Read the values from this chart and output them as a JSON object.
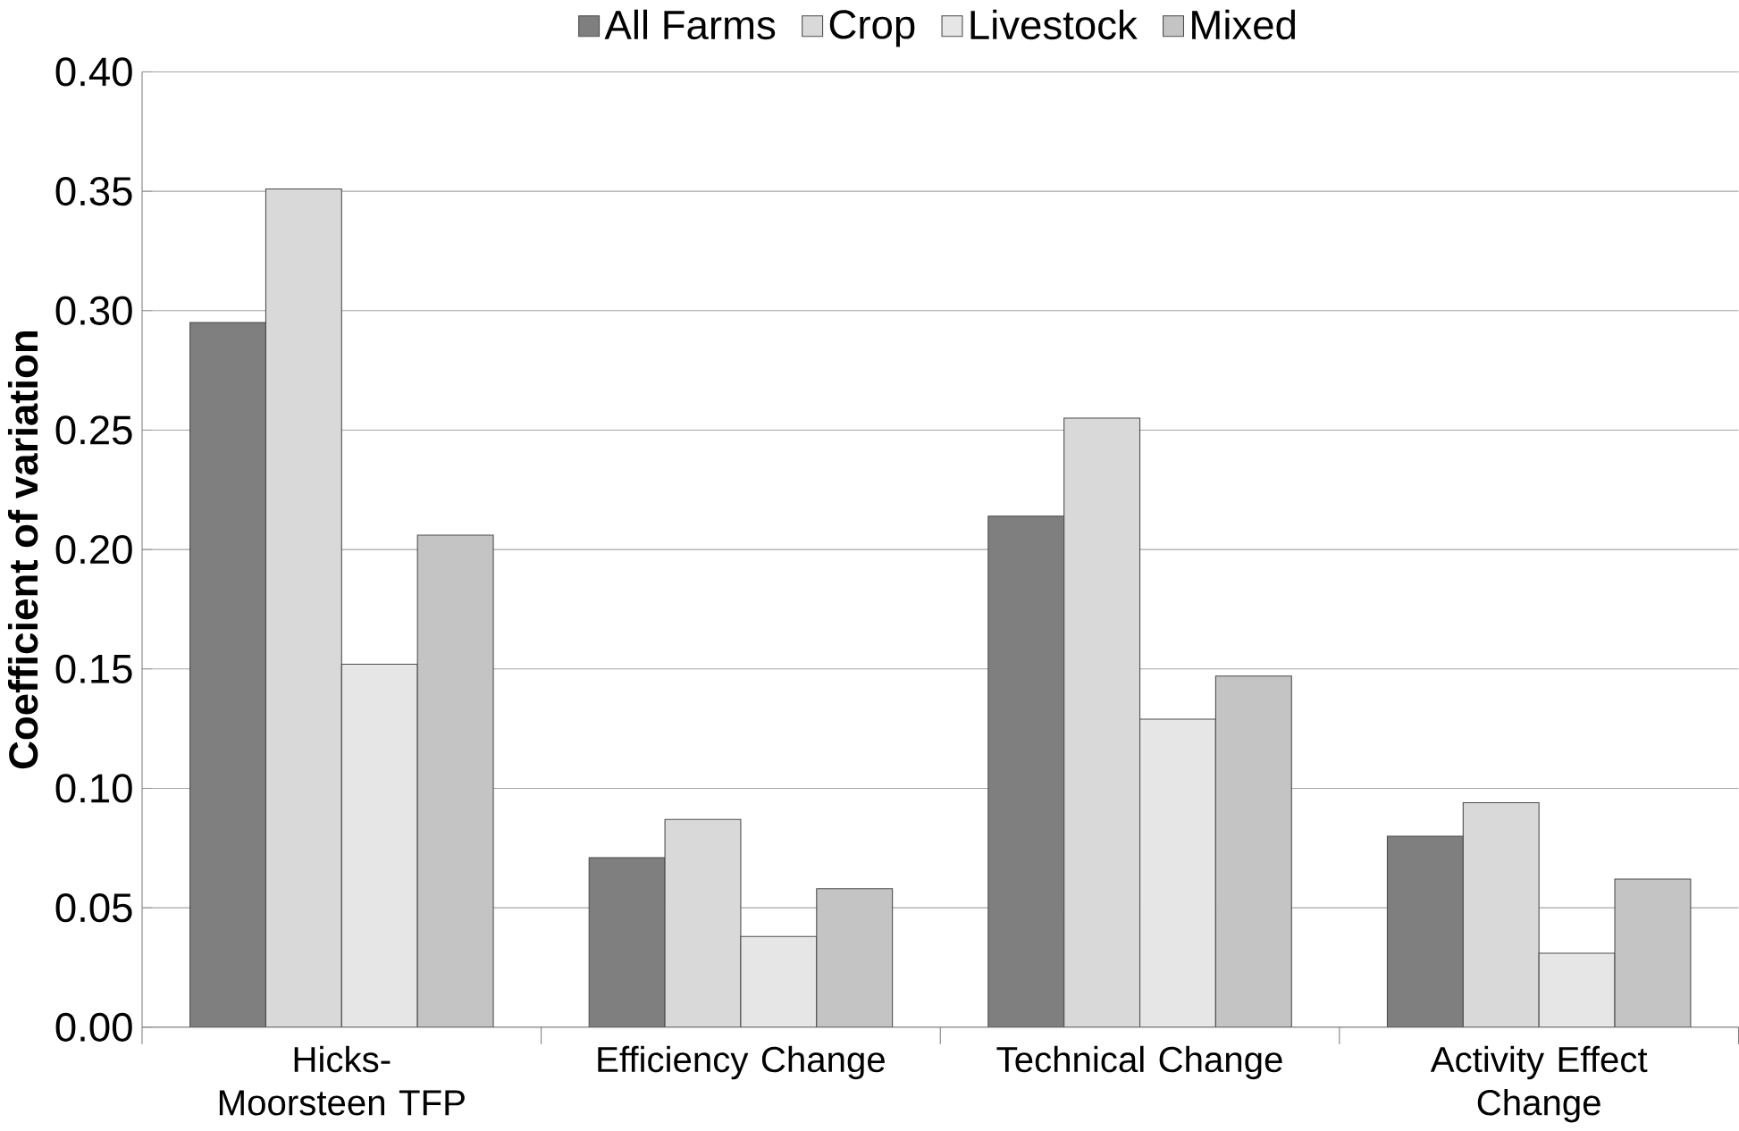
{
  "chart_data": {
    "type": "bar",
    "ylabel": "Coefficient of variation",
    "categories": [
      "Hicks-Moorsteen TFP",
      "Efficiency Change",
      "Technical Change",
      "Activity Effect Change"
    ],
    "series": [
      {
        "name": "All Farms",
        "color": "#7f7f7f",
        "values": [
          0.295,
          0.071,
          0.214,
          0.08
        ]
      },
      {
        "name": "Crop",
        "color": "#d9d9d9",
        "values": [
          0.351,
          0.087,
          0.255,
          0.094
        ]
      },
      {
        "name": "Livestock",
        "color": "#e6e6e6",
        "values": [
          0.152,
          0.038,
          0.129,
          0.031
        ]
      },
      {
        "name": "Mixed",
        "color": "#c4c4c4",
        "values": [
          0.206,
          0.058,
          0.147,
          0.062
        ]
      }
    ],
    "ylim": [
      0,
      0.4
    ],
    "yticks": [
      {
        "value": 0,
        "label": "0.00"
      },
      {
        "value": 0.05,
        "label": "0.05"
      },
      {
        "value": 0.1,
        "label": "0.10"
      },
      {
        "value": 0.15,
        "label": "0.15"
      },
      {
        "value": 0.2,
        "label": "0.20"
      },
      {
        "value": 0.25,
        "label": "0.25"
      },
      {
        "value": 0.3,
        "label": "0.30"
      },
      {
        "value": 0.35,
        "label": "0.35"
      },
      {
        "value": 0.4,
        "label": "0.40"
      }
    ],
    "grid": "y",
    "legend": "top"
  }
}
